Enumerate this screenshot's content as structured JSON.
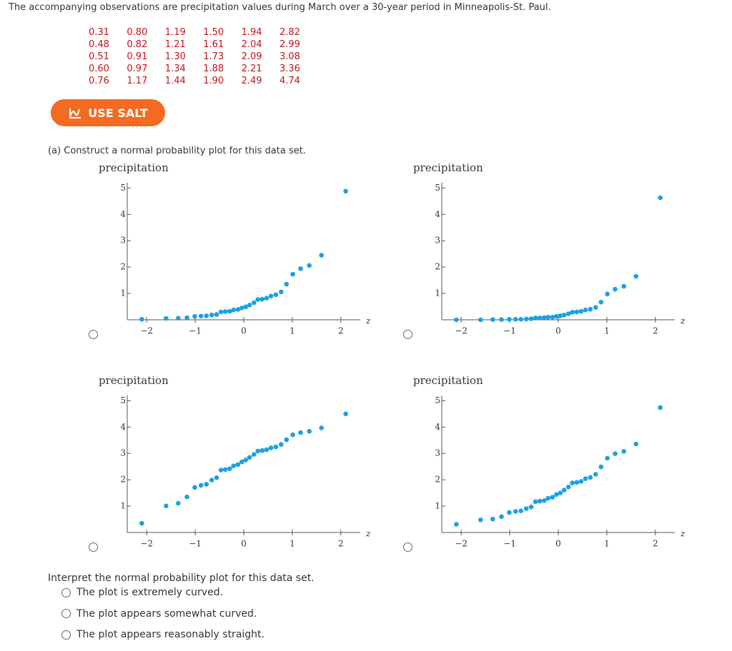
{
  "question": "The accompanying observations are precipitation values during March over a 30-year period in Minneapolis-St. Paul.",
  "data_table": {
    "columns": [
      [
        "0.31",
        "0.48",
        "0.51",
        "0.60",
        "0.76"
      ],
      [
        "0.80",
        "0.82",
        "0.91",
        "0.97",
        "1.17"
      ],
      [
        "1.19",
        "1.21",
        "1.30",
        "1.34",
        "1.44"
      ],
      [
        "1.50",
        "1.61",
        "1.73",
        "1.88",
        "1.90"
      ],
      [
        "1.94",
        "2.04",
        "2.09",
        "2.21",
        "2.49"
      ],
      [
        "2.82",
        "2.99",
        "3.08",
        "3.36",
        "4.74"
      ]
    ]
  },
  "salt_button": "USE SALT",
  "part_a": "(a) Construct a normal probability plot for this data set.",
  "chart_data": [
    {
      "type": "scatter",
      "y_label": "precipitation",
      "x_label": "z",
      "color": "#1ba1e2",
      "x": [
        -2.1,
        -1.6,
        -1.35,
        -1.17,
        -1.01,
        -0.88,
        -0.77,
        -0.66,
        -0.56,
        -0.47,
        -0.38,
        -0.29,
        -0.21,
        -0.12,
        -0.04,
        0.04,
        0.12,
        0.21,
        0.29,
        0.38,
        0.47,
        0.56,
        0.66,
        0.77,
        0.88,
        1.01,
        1.17,
        1.35,
        1.6,
        2.1
      ],
      "values": [
        0.02,
        0.05,
        0.06,
        0.08,
        0.13,
        0.14,
        0.15,
        0.18,
        0.2,
        0.3,
        0.31,
        0.32,
        0.37,
        0.39,
        0.45,
        0.49,
        0.56,
        0.65,
        0.77,
        0.78,
        0.82,
        0.9,
        0.95,
        1.06,
        1.35,
        1.73,
        1.94,
        2.06,
        2.45,
        4.88
      ],
      "xlim": [
        -2.4,
        2.4
      ],
      "ylim": [
        0,
        5.2
      ],
      "xticks": [
        {
          "value": -2,
          "label": "−2"
        },
        {
          "value": -1,
          "label": "−1"
        },
        0,
        1,
        2
      ],
      "yticks": [
        1,
        2,
        3,
        4,
        5
      ]
    },
    {
      "type": "scatter",
      "y_label": "precipitation",
      "x_label": "z",
      "color": "#1ba1e2",
      "x": [
        -2.1,
        -1.6,
        -1.35,
        -1.17,
        -1.01,
        -0.88,
        -0.77,
        -0.66,
        -0.56,
        -0.47,
        -0.38,
        -0.29,
        -0.21,
        -0.12,
        -0.04,
        0.04,
        0.12,
        0.21,
        0.29,
        0.38,
        0.47,
        0.56,
        0.66,
        0.77,
        0.88,
        1.01,
        1.17,
        1.35,
        1.6,
        2.1
      ],
      "values": [
        0,
        0,
        0.01,
        0.01,
        0.02,
        0.02,
        0.02,
        0.03,
        0.04,
        0.07,
        0.07,
        0.08,
        0.1,
        0.1,
        0.13,
        0.15,
        0.18,
        0.23,
        0.29,
        0.3,
        0.32,
        0.37,
        0.4,
        0.47,
        0.67,
        0.98,
        1.16,
        1.27,
        1.65,
        4.63
      ],
      "xlim": [
        -2.4,
        2.4
      ],
      "ylim": [
        0,
        5.2
      ],
      "xticks": [
        {
          "value": -2,
          "label": "−2"
        },
        {
          "value": -1,
          "label": "−1"
        },
        0,
        1,
        2
      ],
      "yticks": [
        1,
        2,
        3,
        4,
        5
      ]
    },
    {
      "type": "scatter",
      "y_label": "precipitation",
      "x_label": "z",
      "color": "#1ba1e2",
      "x": [
        -2.1,
        -1.6,
        -1.35,
        -1.17,
        -1.01,
        -0.88,
        -0.77,
        -0.66,
        -0.56,
        -0.47,
        -0.38,
        -0.29,
        -0.21,
        -0.12,
        -0.04,
        0.04,
        0.12,
        0.21,
        0.29,
        0.38,
        0.47,
        0.56,
        0.66,
        0.77,
        0.88,
        1.01,
        1.17,
        1.35,
        1.6,
        2.1
      ],
      "values": [
        0.35,
        1.01,
        1.11,
        1.35,
        1.71,
        1.79,
        1.83,
        1.99,
        2.08,
        2.37,
        2.39,
        2.42,
        2.53,
        2.58,
        2.68,
        2.75,
        2.85,
        2.96,
        3.09,
        3.11,
        3.14,
        3.21,
        3.25,
        3.34,
        3.52,
        3.71,
        3.79,
        3.84,
        3.97,
        4.5
      ],
      "xlim": [
        -2.4,
        2.4
      ],
      "ylim": [
        0,
        5.2
      ],
      "xticks": [
        {
          "value": -2,
          "label": "−2"
        },
        {
          "value": -1,
          "label": "−1"
        },
        0,
        1,
        2
      ],
      "yticks": [
        1,
        2,
        3,
        4,
        5
      ]
    },
    {
      "type": "scatter",
      "y_label": "precipitation",
      "x_label": "z",
      "color": "#1ba1e2",
      "x": [
        -2.1,
        -1.6,
        -1.35,
        -1.17,
        -1.01,
        -0.88,
        -0.77,
        -0.66,
        -0.56,
        -0.47,
        -0.38,
        -0.29,
        -0.21,
        -0.12,
        -0.04,
        0.04,
        0.12,
        0.21,
        0.29,
        0.38,
        0.47,
        0.56,
        0.66,
        0.77,
        0.88,
        1.01,
        1.17,
        1.35,
        1.6,
        2.1
      ],
      "values": [
        0.31,
        0.48,
        0.51,
        0.6,
        0.76,
        0.8,
        0.82,
        0.91,
        0.97,
        1.17,
        1.19,
        1.21,
        1.3,
        1.34,
        1.44,
        1.5,
        1.61,
        1.73,
        1.88,
        1.9,
        1.94,
        2.04,
        2.09,
        2.21,
        2.49,
        2.82,
        2.99,
        3.08,
        3.36,
        4.74
      ],
      "xlim": [
        -2.4,
        2.4
      ],
      "ylim": [
        0,
        5.2
      ],
      "xticks": [
        {
          "value": -2,
          "label": "−2"
        },
        {
          "value": -1,
          "label": "−1"
        },
        0,
        1,
        2
      ],
      "yticks": [
        1,
        2,
        3,
        4,
        5
      ]
    }
  ],
  "interpret": {
    "prompt": "Interpret the normal probability plot for this data set.",
    "options": [
      "The plot is extremely curved.",
      "The plot appears somewhat curved.",
      "The plot appears reasonably straight."
    ]
  }
}
